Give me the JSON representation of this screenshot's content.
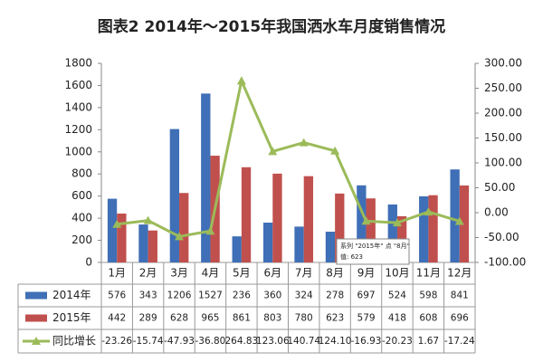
{
  "chart_data": {
    "type": "bar-line-table",
    "title": "图表2  2014年～2015年我国洒水车月度销售情况",
    "categories": [
      "1月",
      "2月",
      "3月",
      "4月",
      "5月",
      "6月",
      "7月",
      "8月",
      "9月",
      "10月",
      "11月",
      "12月"
    ],
    "series": [
      {
        "name": "2014年",
        "color": "#3f6fb6",
        "values": [
          576,
          343,
          1206,
          1527,
          236,
          360,
          324,
          278,
          697,
          524,
          598,
          841
        ]
      },
      {
        "name": "2015年",
        "color": "#c0504d",
        "values": [
          442,
          289,
          628,
          965,
          861,
          803,
          780,
          623,
          579,
          418,
          608,
          696
        ]
      },
      {
        "name": "同比增长",
        "color": "#9bbb59",
        "axis": "y2",
        "values": [
          -23.26,
          -15.74,
          -47.93,
          -36.8,
          264.83,
          123.06,
          140.74,
          124.1,
          -16.93,
          -20.23,
          1.67,
          -17.24
        ],
        "value_labels": [
          "-23.26",
          "-15.74",
          "-47.93",
          "-36.80",
          "264.83",
          "123.06",
          "140.74",
          "124.10",
          "-16.93",
          "-20.23",
          "1.67",
          "-17.24"
        ]
      }
    ],
    "ylim": [
      0,
      1800
    ],
    "yticks": [
      0,
      200,
      400,
      600,
      800,
      1000,
      1200,
      1400,
      1600,
      1800
    ],
    "y2lim": [
      -100,
      300
    ],
    "y2ticks": [
      {
        "value": -100,
        "label": "-100.00"
      },
      {
        "value": -50,
        "label": "-50.00"
      },
      {
        "value": 0,
        "label": "0.00"
      },
      {
        "value": 50,
        "label": "50.00"
      },
      {
        "value": 100,
        "label": "100.00"
      },
      {
        "value": 150,
        "label": "150.00"
      },
      {
        "value": 200,
        "label": "200.00"
      },
      {
        "value": 250,
        "label": "250.00"
      },
      {
        "value": 300,
        "label": "300.00"
      }
    ],
    "tooltip": [
      "系列 \"2015年\" 点 \"8月\"",
      "值: 623"
    ]
  }
}
